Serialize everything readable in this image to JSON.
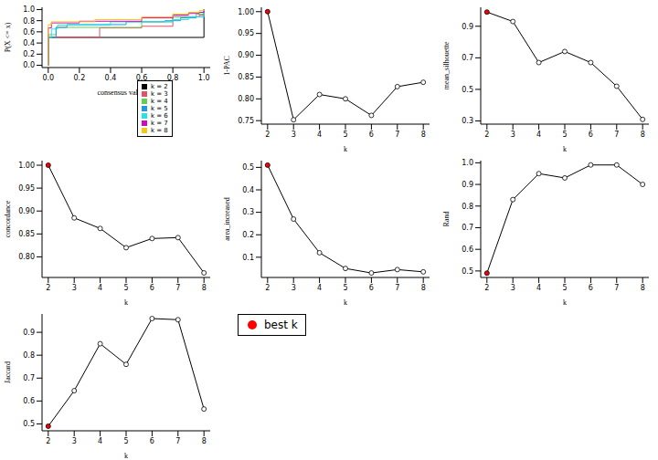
{
  "chart_data": [
    {
      "type": "line",
      "line_style": "step",
      "x_label": "consensus value (x)",
      "y_label": "P(X <= x)",
      "xlim": [
        -0.04,
        1.04
      ],
      "ylim": [
        -0.04,
        1.04
      ],
      "xticks": [
        {
          "value": 0,
          "label": "0.0"
        },
        {
          "value": 0.2,
          "label": "0.2"
        },
        {
          "value": 0.4,
          "label": "0.4"
        },
        {
          "value": 0.6,
          "label": "0.6"
        },
        {
          "value": 0.8,
          "label": "0.8"
        },
        {
          "value": 1,
          "label": "1.0"
        }
      ],
      "yticks": [
        {
          "value": 0,
          "label": "0.0"
        },
        {
          "value": 0.2,
          "label": "0.2"
        },
        {
          "value": 0.4,
          "label": "0.4"
        },
        {
          "value": 0.6,
          "label": "0.6"
        },
        {
          "value": 0.8,
          "label": "0.8"
        },
        {
          "value": 1,
          "label": "1.0"
        }
      ],
      "legend": "bottom-right",
      "series": [
        {
          "name": "k = 2",
          "color": "#000000",
          "x": [
            0,
            0,
            1
          ],
          "values": [
            0,
            0.5,
            1
          ]
        },
        {
          "name": "k = 3",
          "color": "#DF536B",
          "x": [
            0,
            0,
            0.33,
            0.6,
            0.8,
            0.97,
            1
          ],
          "values": [
            0,
            0.51,
            0.67,
            0.7,
            0.87,
            0.9,
            1
          ]
        },
        {
          "name": "k = 4",
          "color": "#61D04F",
          "x": [
            0,
            0,
            0.05,
            0.6,
            0.8,
            0.95,
            1
          ],
          "values": [
            0,
            0.55,
            0.68,
            0.78,
            0.87,
            0.92,
            1
          ]
        },
        {
          "name": "k = 5",
          "color": "#2297E6",
          "x": [
            0,
            0,
            0.05,
            0.12,
            0.5,
            0.75,
            0.85,
            0.95,
            1
          ],
          "values": [
            0,
            0.5,
            0.68,
            0.73,
            0.78,
            0.8,
            0.85,
            0.87,
            1
          ]
        },
        {
          "name": "k = 6",
          "color": "#28E2E5",
          "x": [
            0,
            0,
            0.02,
            0.06,
            0.4,
            0.8,
            0.9,
            1
          ],
          "values": [
            0,
            0.5,
            0.65,
            0.72,
            0.78,
            0.82,
            0.87,
            1
          ]
        },
        {
          "name": "k = 7",
          "color": "#CD0BBC",
          "x": [
            0,
            0,
            0.02,
            0.2,
            0.6,
            0.8,
            0.9,
            0.97,
            1
          ],
          "values": [
            0,
            0.67,
            0.76,
            0.79,
            0.85,
            0.9,
            0.93,
            0.95,
            1
          ]
        },
        {
          "name": "k = 8",
          "color": "#F5C710",
          "x": [
            0,
            0,
            0.02,
            0.3,
            0.6,
            0.8,
            0.9,
            0.97,
            1
          ],
          "values": [
            0,
            0.73,
            0.78,
            0.82,
            0.87,
            0.92,
            0.95,
            0.98,
            1
          ]
        }
      ]
    },
    {
      "type": "line",
      "line_style": "solid",
      "marker": "circle",
      "x_label": "k",
      "y_label": "1-PAC",
      "x": [
        2,
        3,
        4,
        5,
        6,
        7,
        8
      ],
      "values": [
        1.0,
        0.752,
        0.81,
        0.8,
        0.762,
        0.828,
        0.838
      ],
      "colors": [
        "#FF0000",
        "#FFFFFF",
        "#FFFFFF",
        "#FFFFFF",
        "#FFFFFF",
        "#FFFFFF",
        "#FFFFFF"
      ],
      "xlim": [
        1.76,
        8.24
      ],
      "xticks": [
        2,
        3,
        4,
        5,
        6,
        7,
        8
      ],
      "ylim": [
        0.742,
        1.01
      ],
      "yticks": [
        0.75,
        {
          "value": 0.8,
          "label": "0.80"
        },
        0.85,
        {
          "value": 0.9,
          "label": "0.90"
        },
        0.95,
        {
          "value": 1,
          "label": "1.00"
        }
      ]
    },
    {
      "type": "line",
      "line_style": "solid",
      "marker": "circle",
      "x_label": "k",
      "y_label": "mean_silhouette",
      "x": [
        2,
        3,
        4,
        5,
        6,
        7,
        8
      ],
      "values": [
        0.99,
        0.93,
        0.67,
        0.74,
        0.67,
        0.52,
        0.31
      ],
      "colors": [
        "#FF0000",
        "#FFFFFF",
        "#FFFFFF",
        "#FFFFFF",
        "#FFFFFF",
        "#FFFFFF",
        "#FFFFFF"
      ],
      "xlim": [
        1.76,
        8.24
      ],
      "xticks": [
        2,
        3,
        4,
        5,
        6,
        7,
        8
      ],
      "ylim": [
        0.28,
        1.02
      ],
      "yticks": [
        0.3,
        0.5,
        0.7,
        0.9
      ]
    },
    {
      "type": "line",
      "line_style": "solid",
      "marker": "circle",
      "x_label": "k",
      "y_label": "concordance",
      "x": [
        2,
        3,
        4,
        5,
        6,
        7,
        8
      ],
      "values": [
        1.0,
        0.885,
        0.862,
        0.82,
        0.84,
        0.842,
        0.765
      ],
      "colors": [
        "#FF0000",
        "#FFFFFF",
        "#FFFFFF",
        "#FFFFFF",
        "#FFFFFF",
        "#FFFFFF",
        "#FFFFFF"
      ],
      "xlim": [
        1.76,
        8.24
      ],
      "xticks": [
        2,
        3,
        4,
        5,
        6,
        7,
        8
      ],
      "ylim": [
        0.755,
        1.01
      ],
      "yticks": [
        {
          "value": 0.8,
          "label": "0.80"
        },
        0.85,
        {
          "value": 0.9,
          "label": "0.90"
        },
        0.95,
        {
          "value": 1,
          "label": "1.00"
        }
      ]
    },
    {
      "type": "line",
      "line_style": "solid",
      "marker": "circle",
      "x_label": "k",
      "y_label": "area_increased",
      "x": [
        2,
        3,
        4,
        5,
        6,
        7,
        8
      ],
      "values": [
        0.51,
        0.27,
        0.12,
        0.05,
        0.03,
        0.045,
        0.035
      ],
      "colors": [
        "#FF0000",
        "#FFFFFF",
        "#FFFFFF",
        "#FFFFFF",
        "#FFFFFF",
        "#FFFFFF",
        "#FFFFFF"
      ],
      "xlim": [
        1.76,
        8.24
      ],
      "xticks": [
        2,
        3,
        4,
        5,
        6,
        7,
        8
      ],
      "ylim": [
        0.01,
        0.53
      ],
      "yticks": [
        0.1,
        0.2,
        0.3,
        0.4,
        0.5
      ]
    },
    {
      "type": "line",
      "line_style": "solid",
      "marker": "circle",
      "x_label": "k",
      "y_label": "Rand",
      "x": [
        2,
        3,
        4,
        5,
        6,
        7,
        8
      ],
      "values": [
        0.49,
        0.83,
        0.95,
        0.93,
        0.99,
        0.99,
        0.9
      ],
      "colors": [
        "#FF0000",
        "#FFFFFF",
        "#FFFFFF",
        "#FFFFFF",
        "#FFFFFF",
        "#FFFFFF",
        "#FFFFFF"
      ],
      "xlim": [
        1.76,
        8.24
      ],
      "xticks": [
        2,
        3,
        4,
        5,
        6,
        7,
        8
      ],
      "ylim": [
        0.47,
        1.01
      ],
      "yticks": [
        0.5,
        0.6,
        0.7,
        0.8,
        0.9,
        {
          "value": 1,
          "label": "1.0"
        }
      ]
    },
    {
      "type": "line",
      "line_style": "solid",
      "marker": "circle",
      "x_label": "k",
      "y_label": "Jaccard",
      "x": [
        2,
        3,
        4,
        5,
        6,
        7,
        8
      ],
      "values": [
        0.49,
        0.645,
        0.85,
        0.76,
        0.96,
        0.955,
        0.565
      ],
      "colors": [
        "#FF0000",
        "#FFFFFF",
        "#FFFFFF",
        "#FFFFFF",
        "#FFFFFF",
        "#FFFFFF",
        "#FFFFFF"
      ],
      "xlim": [
        1.76,
        8.24
      ],
      "xticks": [
        2,
        3,
        4,
        5,
        6,
        7,
        8
      ],
      "ylim": [
        0.47,
        0.98
      ],
      "yticks": [
        0.5,
        0.6,
        0.7,
        0.8,
        0.9
      ]
    },
    {
      "type": "legend",
      "series": [
        {
          "name": "best k",
          "color": "#FF0000",
          "marker": "circle"
        }
      ]
    }
  ]
}
